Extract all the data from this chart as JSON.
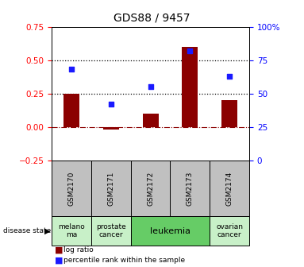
{
  "title": "GDS88 / 9457",
  "samples": [
    "GSM2170",
    "GSM2171",
    "GSM2172",
    "GSM2173",
    "GSM2174"
  ],
  "log_ratio": [
    0.25,
    -0.02,
    0.1,
    0.6,
    0.2
  ],
  "percentile_rank": [
    68,
    42,
    55,
    82,
    63
  ],
  "left_ylim": [
    -0.25,
    0.75
  ],
  "right_ylim": [
    0,
    100
  ],
  "left_yticks": [
    -0.25,
    0,
    0.25,
    0.5,
    0.75
  ],
  "right_yticks": [
    0,
    25,
    50,
    75,
    100
  ],
  "hlines": [
    0.5,
    0.25
  ],
  "bar_color": "#8B0000",
  "dot_color": "#1a1aff",
  "disease_states": [
    {
      "label": "melano\nma",
      "start": 0,
      "end": 1,
      "color": "#c8f0c8"
    },
    {
      "label": "prostate\ncancer",
      "start": 1,
      "end": 2,
      "color": "#c8f0c8"
    },
    {
      "label": "leukemia",
      "start": 2,
      "end": 4,
      "color": "#66cc66"
    },
    {
      "label": "ovarian\ncancer",
      "start": 4,
      "end": 5,
      "color": "#c8f0c8"
    }
  ],
  "legend_bar_label": "log ratio",
  "legend_dot_label": "percentile rank within the sample",
  "disease_label": "disease state",
  "sample_box_color": "#c0c0c0",
  "background_color": "#ffffff"
}
